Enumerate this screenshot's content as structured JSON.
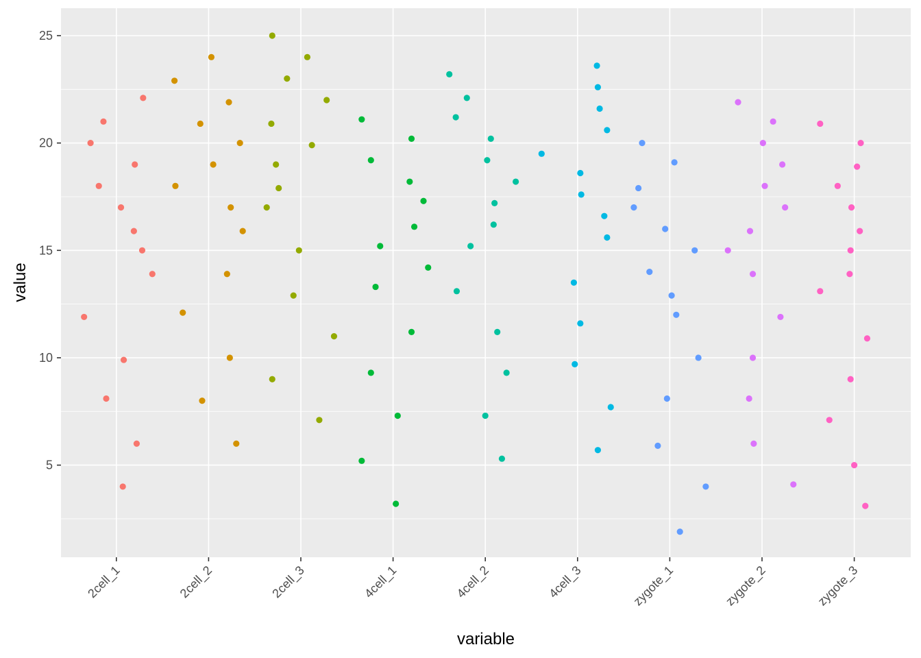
{
  "chart_data": {
    "type": "scatter",
    "title": "",
    "xlabel": "variable",
    "ylabel": "value",
    "categories": [
      "2cell_1",
      "2cell_2",
      "2cell_3",
      "4cell_1",
      "4cell_2",
      "4cell_3",
      "zygote_1",
      "zygote_2",
      "zygote_3"
    ],
    "y_ticks": [
      5,
      10,
      15,
      20,
      25
    ],
    "ylim": [
      0.9,
      26.2
    ],
    "grid": true,
    "legend": "none",
    "x_tick_rotation": "45 degrees",
    "series": [
      {
        "category": "2cell_1",
        "color": "#F8766D",
        "points": [
          {
            "x": -0.35,
            "y": 11.9
          },
          {
            "x": -0.28,
            "y": 20.0
          },
          {
            "x": -0.19,
            "y": 18.0
          },
          {
            "x": -0.14,
            "y": 21.0
          },
          {
            "x": -0.11,
            "y": 8.1
          },
          {
            "x": 0.05,
            "y": 17.0
          },
          {
            "x": 0.07,
            "y": 4.0
          },
          {
            "x": 0.08,
            "y": 9.9
          },
          {
            "x": 0.19,
            "y": 15.9
          },
          {
            "x": 0.2,
            "y": 19.0
          },
          {
            "x": 0.22,
            "y": 6.0
          },
          {
            "x": 0.28,
            "y": 15.0
          },
          {
            "x": 0.29,
            "y": 22.1
          },
          {
            "x": 0.39,
            "y": 13.9
          }
        ]
      },
      {
        "category": "2cell_2",
        "color": "#D39200",
        "points": [
          {
            "x": -0.37,
            "y": 22.9
          },
          {
            "x": -0.36,
            "y": 18.0
          },
          {
            "x": -0.28,
            "y": 12.1
          },
          {
            "x": -0.09,
            "y": 20.9
          },
          {
            "x": -0.07,
            "y": 8.0
          },
          {
            "x": 0.03,
            "y": 24.0
          },
          {
            "x": 0.05,
            "y": 19.0
          },
          {
            "x": 0.2,
            "y": 13.9
          },
          {
            "x": 0.22,
            "y": 21.9
          },
          {
            "x": 0.23,
            "y": 10.0
          },
          {
            "x": 0.24,
            "y": 17.0
          },
          {
            "x": 0.3,
            "y": 6.0
          },
          {
            "x": 0.34,
            "y": 20.0
          },
          {
            "x": 0.37,
            "y": 15.9
          }
        ]
      },
      {
        "category": "2cell_3",
        "color": "#93AA00",
        "points": [
          {
            "x": -0.37,
            "y": 17.0
          },
          {
            "x": -0.32,
            "y": 20.9
          },
          {
            "x": -0.31,
            "y": 9.0
          },
          {
            "x": -0.31,
            "y": 25.0
          },
          {
            "x": -0.27,
            "y": 19.0
          },
          {
            "x": -0.24,
            "y": 17.9
          },
          {
            "x": -0.15,
            "y": 23.0
          },
          {
            "x": -0.08,
            "y": 12.9
          },
          {
            "x": -0.02,
            "y": 15.0
          },
          {
            "x": 0.07,
            "y": 24.0
          },
          {
            "x": 0.12,
            "y": 19.9
          },
          {
            "x": 0.2,
            "y": 7.1
          },
          {
            "x": 0.28,
            "y": 22.0
          },
          {
            "x": 0.36,
            "y": 11.0
          }
        ]
      },
      {
        "category": "4cell_1",
        "color": "#00BA38",
        "points": [
          {
            "x": -0.34,
            "y": 5.2
          },
          {
            "x": -0.34,
            "y": 21.1
          },
          {
            "x": -0.24,
            "y": 9.3
          },
          {
            "x": -0.24,
            "y": 19.2
          },
          {
            "x": -0.19,
            "y": 13.3
          },
          {
            "x": -0.14,
            "y": 15.2
          },
          {
            "x": 0.03,
            "y": 3.2
          },
          {
            "x": 0.05,
            "y": 7.3
          },
          {
            "x": 0.18,
            "y": 18.2
          },
          {
            "x": 0.2,
            "y": 20.2
          },
          {
            "x": 0.2,
            "y": 11.2
          },
          {
            "x": 0.23,
            "y": 16.1
          },
          {
            "x": 0.33,
            "y": 17.3
          },
          {
            "x": 0.38,
            "y": 14.2
          }
        ]
      },
      {
        "category": "4cell_2",
        "color": "#00C19F",
        "points": [
          {
            "x": -0.39,
            "y": 23.2
          },
          {
            "x": -0.32,
            "y": 21.2
          },
          {
            "x": -0.31,
            "y": 13.1
          },
          {
            "x": -0.2,
            "y": 22.1
          },
          {
            "x": -0.16,
            "y": 15.2
          },
          {
            "x": 0.0,
            "y": 7.3
          },
          {
            "x": 0.02,
            "y": 19.2
          },
          {
            "x": 0.06,
            "y": 20.2
          },
          {
            "x": 0.09,
            "y": 16.2
          },
          {
            "x": 0.1,
            "y": 17.2
          },
          {
            "x": 0.13,
            "y": 11.2
          },
          {
            "x": 0.18,
            "y": 5.3
          },
          {
            "x": 0.23,
            "y": 9.3
          },
          {
            "x": 0.33,
            "y": 18.2
          }
        ]
      },
      {
        "category": "4cell_3",
        "color": "#00B9E3",
        "points": [
          {
            "x": -0.39,
            "y": 19.5
          },
          {
            "x": -0.04,
            "y": 13.5
          },
          {
            "x": -0.03,
            "y": 9.7
          },
          {
            "x": 0.03,
            "y": 18.6
          },
          {
            "x": 0.03,
            "y": 11.6
          },
          {
            "x": 0.04,
            "y": 17.6
          },
          {
            "x": 0.21,
            "y": 23.6
          },
          {
            "x": 0.22,
            "y": 22.6
          },
          {
            "x": 0.22,
            "y": 5.7
          },
          {
            "x": 0.24,
            "y": 21.6
          },
          {
            "x": 0.29,
            "y": 16.6
          },
          {
            "x": 0.32,
            "y": 15.6
          },
          {
            "x": 0.32,
            "y": 20.6
          },
          {
            "x": 0.36,
            "y": 7.7
          }
        ]
      },
      {
        "category": "zygote_1",
        "color": "#619CFF",
        "points": [
          {
            "x": -0.39,
            "y": 17.0
          },
          {
            "x": -0.34,
            "y": 17.9
          },
          {
            "x": -0.3,
            "y": 20.0
          },
          {
            "x": -0.22,
            "y": 14.0
          },
          {
            "x": -0.13,
            "y": 5.9
          },
          {
            "x": -0.05,
            "y": 16.0
          },
          {
            "x": -0.03,
            "y": 8.1
          },
          {
            "x": 0.02,
            "y": 12.9
          },
          {
            "x": 0.05,
            "y": 19.1
          },
          {
            "x": 0.07,
            "y": 12.0
          },
          {
            "x": 0.11,
            "y": 1.9
          },
          {
            "x": 0.27,
            "y": 15.0
          },
          {
            "x": 0.31,
            "y": 10.0
          },
          {
            "x": 0.39,
            "y": 4.0
          }
        ]
      },
      {
        "category": "zygote_2",
        "color": "#DB72FB",
        "points": [
          {
            "x": -0.37,
            "y": 15.0
          },
          {
            "x": -0.26,
            "y": 21.9
          },
          {
            "x": -0.14,
            "y": 8.1
          },
          {
            "x": -0.13,
            "y": 15.9
          },
          {
            "x": -0.1,
            "y": 13.9
          },
          {
            "x": -0.1,
            "y": 10.0
          },
          {
            "x": -0.09,
            "y": 6.0
          },
          {
            "x": 0.01,
            "y": 20.0
          },
          {
            "x": 0.03,
            "y": 18.0
          },
          {
            "x": 0.12,
            "y": 21.0
          },
          {
            "x": 0.2,
            "y": 11.9
          },
          {
            "x": 0.22,
            "y": 19.0
          },
          {
            "x": 0.25,
            "y": 17.0
          },
          {
            "x": 0.34,
            "y": 4.1
          }
        ]
      },
      {
        "category": "zygote_3",
        "color": "#FF61C3",
        "points": [
          {
            "x": -0.37,
            "y": 20.9
          },
          {
            "x": -0.37,
            "y": 13.1
          },
          {
            "x": -0.27,
            "y": 7.1
          },
          {
            "x": -0.18,
            "y": 18.0
          },
          {
            "x": -0.05,
            "y": 13.9
          },
          {
            "x": -0.04,
            "y": 15.0
          },
          {
            "x": -0.04,
            "y": 9.0
          },
          {
            "x": -0.03,
            "y": 17.0
          },
          {
            "x": 0.0,
            "y": 5.0
          },
          {
            "x": 0.03,
            "y": 18.9
          },
          {
            "x": 0.06,
            "y": 15.9
          },
          {
            "x": 0.07,
            "y": 20.0
          },
          {
            "x": 0.12,
            "y": 3.1
          },
          {
            "x": 0.14,
            "y": 10.9
          }
        ]
      }
    ]
  },
  "chart": {
    "panel_color": "#EBEBEB",
    "grid_color": "#FFFFFF",
    "tick_color": "#333333"
  }
}
